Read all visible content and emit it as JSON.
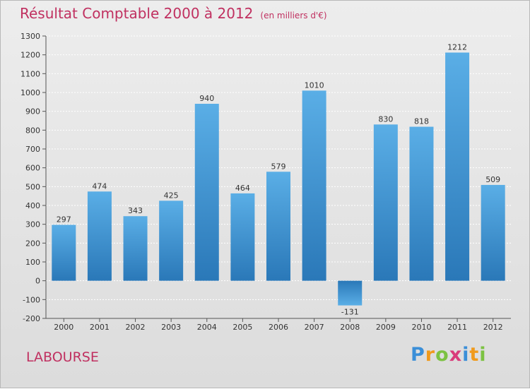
{
  "title": "Résultat Comptable 2000 à 2012",
  "subtitle": "(en milliers d'€)",
  "commune": "LABOURSE",
  "logo": {
    "letters": [
      "P",
      "r",
      "o",
      "x",
      "i",
      "t",
      "i"
    ],
    "colors": [
      "#3b8fd8",
      "#f09a1c",
      "#7cc242",
      "#d93a7a",
      "#3b8fd8",
      "#f09a1c",
      "#7cc242"
    ]
  },
  "colors": {
    "bar_top": "#5aaee6",
    "bar_bottom": "#2a78b8",
    "title": "#c03060"
  },
  "chart_data": {
    "type": "bar",
    "title": "Résultat Comptable 2000 à 2012",
    "ylabel": "en milliers d'€",
    "xlabel": "",
    "categories": [
      "2000",
      "2001",
      "2002",
      "2003",
      "2004",
      "2005",
      "2006",
      "2007",
      "2008",
      "2009",
      "2010",
      "2011",
      "2012"
    ],
    "values": [
      297,
      474,
      343,
      425,
      940,
      464,
      579,
      1010,
      -131,
      830,
      818,
      1212,
      509
    ],
    "ylim": [
      -200,
      1300
    ],
    "yticks": [
      -200,
      -100,
      0,
      100,
      200,
      300,
      400,
      500,
      600,
      700,
      800,
      900,
      1000,
      1100,
      1200,
      1300
    ],
    "grid": true
  }
}
